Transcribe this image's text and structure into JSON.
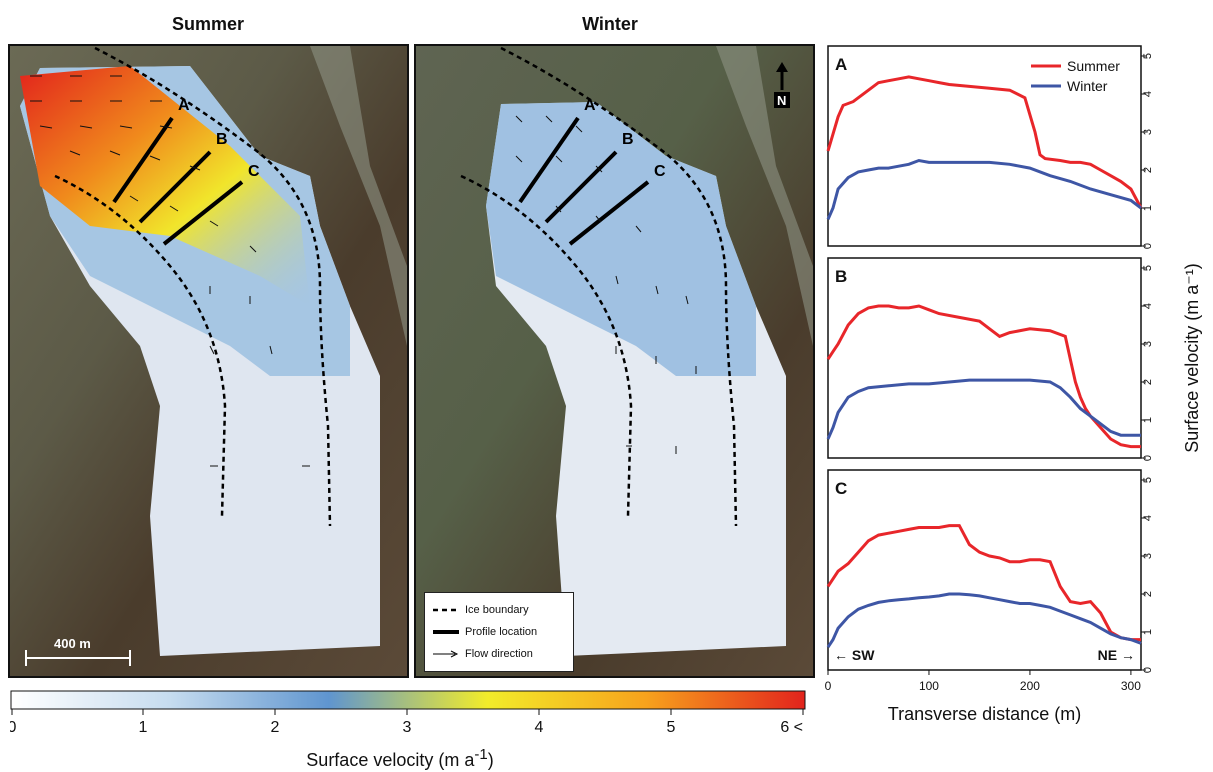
{
  "maps": {
    "summer_title": "Summer",
    "winter_title": "Winter",
    "profile_labels": [
      "A",
      "B",
      "C"
    ],
    "scale_bar_label": "400 m",
    "north_label": "N",
    "legend": {
      "ice_boundary": "Ice boundary",
      "profile_location": "Profile location",
      "flow_direction": "Flow direction"
    }
  },
  "colorbar": {
    "ticks": [
      "0",
      "1",
      "2",
      "3",
      "4",
      "5",
      "6 <"
    ],
    "min": 0,
    "max": 6,
    "colors": [
      "#ffffff",
      "#c6dcef",
      "#5f95cf",
      "#f2ec2a",
      "#f7a21c",
      "#e2231c"
    ],
    "title": "Surface velocity (m a",
    "title_sup": "-1",
    "title_end": ")"
  },
  "chart_data": {
    "type": "line",
    "xlabel": "Transverse distance (m)",
    "ylabel": "Surface velocity (m a⁻¹)",
    "xlim": [
      0,
      310
    ],
    "ylim": [
      0,
      5
    ],
    "xticks": [
      "0",
      "100",
      "200",
      "300"
    ],
    "yticks": [
      "0",
      "1",
      "2",
      "3",
      "4",
      "5"
    ],
    "annotations": {
      "left": "← SW",
      "right": "NE →"
    },
    "legend_placement": "top-right",
    "colors": {
      "Summer": "#e8262a",
      "Winter": "#3e56a5"
    },
    "panels": [
      {
        "label": "A",
        "series": [
          {
            "name": "Summer",
            "x": [
              0,
              10,
              15,
              25,
              40,
              50,
              60,
              70,
              80,
              90,
              100,
              110,
              120,
              140,
              160,
              180,
              195,
              205,
              210,
              215,
              230,
              240,
              250,
              260,
              270,
              280,
              290,
              300,
              310
            ],
            "y": [
              2.5,
              3.4,
              3.7,
              3.8,
              4.1,
              4.3,
              4.35,
              4.4,
              4.45,
              4.4,
              4.35,
              4.3,
              4.25,
              4.2,
              4.15,
              4.1,
              3.9,
              3.0,
              2.4,
              2.3,
              2.25,
              2.2,
              2.2,
              2.15,
              2.0,
              1.85,
              1.7,
              1.5,
              1.0
            ]
          },
          {
            "name": "Winter",
            "x": [
              0,
              5,
              10,
              20,
              30,
              40,
              50,
              60,
              70,
              80,
              90,
              100,
              120,
              140,
              160,
              180,
              200,
              220,
              240,
              260,
              280,
              300,
              310
            ],
            "y": [
              0.7,
              1.0,
              1.5,
              1.8,
              1.95,
              2.0,
              2.05,
              2.05,
              2.1,
              2.15,
              2.25,
              2.2,
              2.2,
              2.2,
              2.2,
              2.15,
              2.05,
              1.85,
              1.7,
              1.5,
              1.35,
              1.2,
              1.0
            ]
          }
        ]
      },
      {
        "label": "B",
        "series": [
          {
            "name": "Summer",
            "x": [
              0,
              5,
              10,
              20,
              30,
              40,
              50,
              60,
              70,
              80,
              90,
              100,
              110,
              130,
              150,
              160,
              170,
              180,
              200,
              220,
              235,
              240,
              245,
              250,
              255,
              260,
              270,
              280,
              290,
              300,
              310
            ],
            "y": [
              2.6,
              2.8,
              3.0,
              3.5,
              3.8,
              3.95,
              4.0,
              4.0,
              3.95,
              3.95,
              4.0,
              3.9,
              3.8,
              3.7,
              3.6,
              3.4,
              3.2,
              3.3,
              3.4,
              3.35,
              3.2,
              2.6,
              2.0,
              1.6,
              1.3,
              1.1,
              0.8,
              0.5,
              0.35,
              0.3,
              0.3
            ]
          },
          {
            "name": "Winter",
            "x": [
              0,
              5,
              10,
              20,
              30,
              40,
              60,
              80,
              100,
              120,
              140,
              160,
              180,
              200,
              220,
              230,
              240,
              250,
              260,
              270,
              280,
              290,
              300,
              310
            ],
            "y": [
              0.5,
              0.8,
              1.2,
              1.6,
              1.75,
              1.85,
              1.9,
              1.95,
              1.95,
              2.0,
              2.05,
              2.05,
              2.05,
              2.05,
              2.0,
              1.85,
              1.6,
              1.3,
              1.1,
              0.9,
              0.7,
              0.6,
              0.6,
              0.6
            ]
          }
        ]
      },
      {
        "label": "C",
        "series": [
          {
            "name": "Summer",
            "x": [
              0,
              10,
              20,
              30,
              40,
              50,
              60,
              70,
              80,
              90,
              100,
              110,
              120,
              130,
              140,
              150,
              160,
              170,
              180,
              190,
              200,
              210,
              220,
              230,
              240,
              250,
              260,
              270,
              280,
              290,
              300,
              310
            ],
            "y": [
              2.2,
              2.6,
              2.8,
              3.1,
              3.4,
              3.55,
              3.6,
              3.65,
              3.7,
              3.75,
              3.75,
              3.75,
              3.8,
              3.8,
              3.3,
              3.1,
              3.0,
              2.95,
              2.85,
              2.85,
              2.9,
              2.9,
              2.85,
              2.2,
              1.8,
              1.75,
              1.8,
              1.5,
              1.0,
              0.85,
              0.8,
              0.8
            ]
          },
          {
            "name": "Winter",
            "x": [
              0,
              5,
              10,
              20,
              30,
              40,
              50,
              60,
              70,
              80,
              90,
              100,
              110,
              120,
              130,
              140,
              150,
              160,
              170,
              180,
              190,
              200,
              210,
              220,
              230,
              240,
              250,
              260,
              270,
              280,
              290,
              300,
              310
            ],
            "y": [
              0.6,
              0.8,
              1.1,
              1.4,
              1.6,
              1.7,
              1.78,
              1.82,
              1.85,
              1.87,
              1.9,
              1.92,
              1.95,
              2.0,
              2.0,
              1.98,
              1.95,
              1.9,
              1.85,
              1.8,
              1.75,
              1.75,
              1.7,
              1.65,
              1.55,
              1.45,
              1.35,
              1.25,
              1.1,
              0.95,
              0.85,
              0.8,
              0.7
            ]
          }
        ]
      }
    ]
  }
}
